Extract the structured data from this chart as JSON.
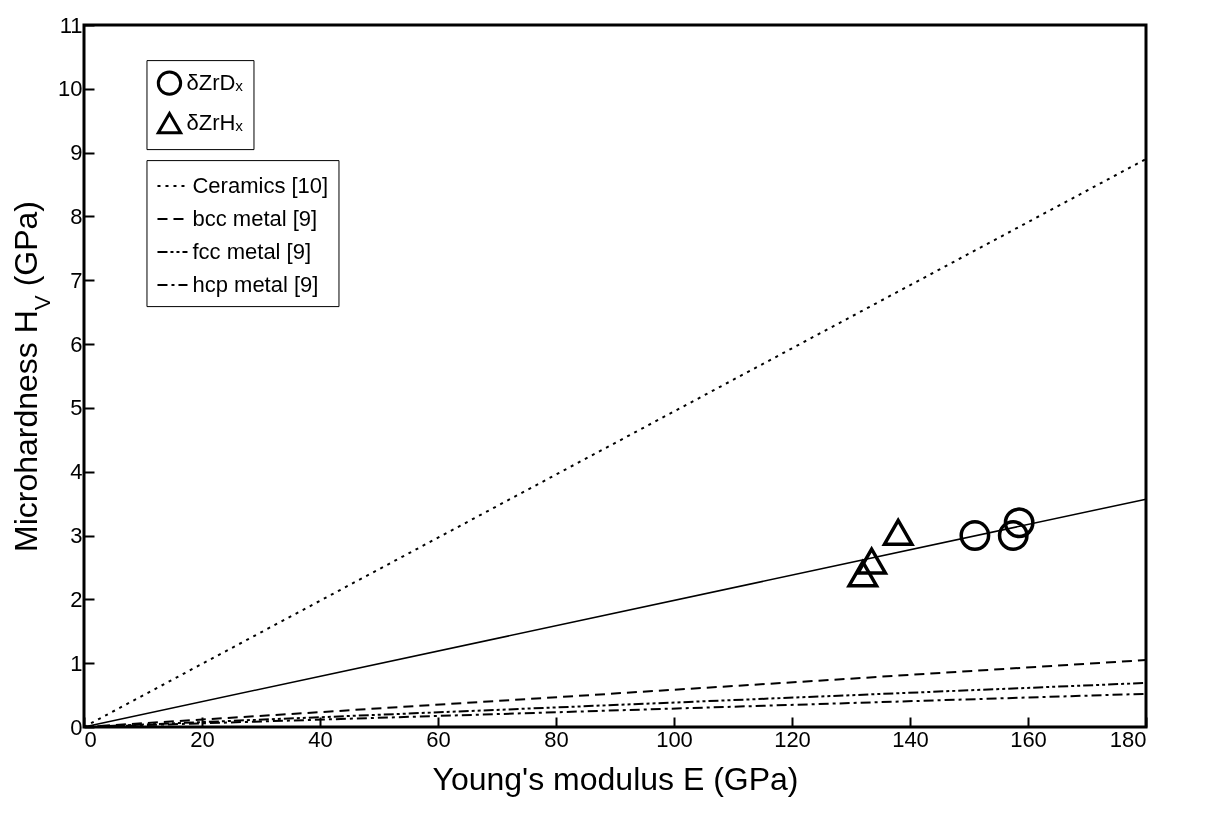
{
  "chart_data": {
    "type": "scatter",
    "xlabel": "Young's modulus E (GPa)",
    "ylabel": "Microhardness H$_{V}$ (GPa)",
    "xlim": [
      0,
      180
    ],
    "xticks": [
      0,
      20,
      40,
      60,
      80,
      100,
      120,
      140,
      160,
      180
    ],
    "ylim": [
      0,
      11
    ],
    "yticks": [
      0,
      1,
      2,
      3,
      4,
      5,
      6,
      7,
      8,
      9,
      10,
      11
    ],
    "legend": "top left",
    "grid": false,
    "series": [
      {
        "name": "δZrDₓ",
        "marker": "circle",
        "color": "#000000",
        "x": [
          151,
          157.5,
          158.5
        ],
        "values": [
          3.0,
          3.0,
          3.2
        ]
      },
      {
        "name": "δZrHₓ",
        "marker": "triangle",
        "color": "#000000",
        "x": [
          132,
          133.5,
          138
        ],
        "values": [
          2.4,
          2.6,
          3.05
        ]
      },
      {
        "name": "Ceramics [10]",
        "type": "line",
        "line_style": "dotted",
        "color": "#000000",
        "x": [
          0,
          180
        ],
        "values": [
          0,
          8.9
        ]
      },
      {
        "name": "bcc metal [9]",
        "type": "line",
        "line_style": "dashed",
        "color": "#000000",
        "x": [
          0,
          180
        ],
        "values": [
          0,
          1.05
        ]
      },
      {
        "name": "fcc metal [9]",
        "type": "line",
        "line_style": "dashdotdot",
        "color": "#000000",
        "x": [
          0,
          180
        ],
        "values": [
          0,
          0.69
        ]
      },
      {
        "name": "hcp metal [9]",
        "type": "line",
        "line_style": "dashdot",
        "color": "#000000",
        "x": [
          0,
          180
        ],
        "values": [
          0,
          0.52
        ]
      },
      {
        "type": "line",
        "line_style": "solid",
        "color": "#000000",
        "x": [
          0,
          180
        ],
        "values": [
          0,
          3.57
        ]
      }
    ]
  }
}
